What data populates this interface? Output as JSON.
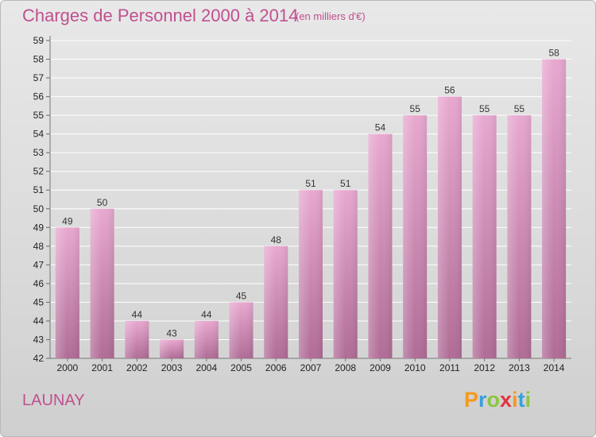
{
  "header": {
    "title": "Charges de Personnel 2000 à 2014",
    "unit_note": "(en milliers d'€)"
  },
  "footer": {
    "commune": "LAUNAY",
    "logo_text": "Proxiti"
  },
  "colors": {
    "title": "#c0508f",
    "bar_top": "#e8a8d0",
    "bar_bottom": "#b06c96",
    "grid": "#ffffff"
  },
  "chart_data": {
    "type": "bar",
    "title": "Charges de Personnel 2000 à 2014",
    "subtitle": "(en milliers d'€)",
    "categories": [
      "2000",
      "2001",
      "2002",
      "2003",
      "2004",
      "2005",
      "2006",
      "2007",
      "2008",
      "2009",
      "2010",
      "2011",
      "2012",
      "2013",
      "2014"
    ],
    "values": [
      49,
      50,
      44,
      43,
      44,
      45,
      48,
      51,
      51,
      54,
      55,
      56,
      55,
      55,
      58
    ],
    "ylim": [
      42,
      59
    ],
    "yticks": [
      42,
      43,
      44,
      45,
      46,
      47,
      48,
      49,
      50,
      51,
      52,
      53,
      54,
      55,
      56,
      57,
      58,
      59
    ],
    "grid": true,
    "data_labels": true
  }
}
